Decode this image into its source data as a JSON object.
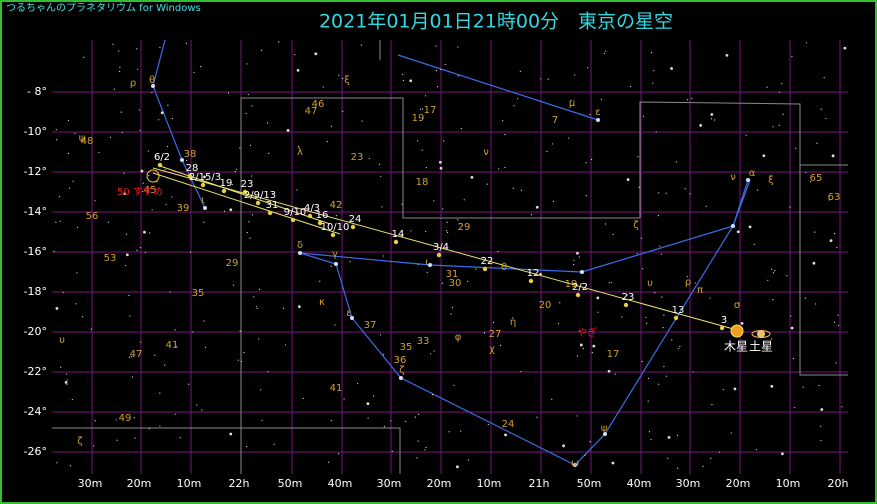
{
  "app_name": "つるちゃんのプラネタリウム for Windows",
  "title": "2021年01月01日21時00分　東京の星空",
  "dec_labels": [
    "- 8°",
    "-10°",
    "-12°",
    "-14°",
    "-16°",
    "-18°",
    "-20°",
    "-22°",
    "-24°",
    "-26°"
  ],
  "ra_labels": [
    "30m",
    "20m",
    "10m",
    "22h",
    "50m",
    "40m",
    "30m",
    "20m",
    "10m",
    "21h",
    "50m",
    "40m",
    "30m",
    "20m",
    "10m",
    "20h"
  ],
  "star_labels": [
    "ρ",
    "θ",
    "ξ",
    "46",
    "47",
    "19",
    "17",
    "μ",
    "ε",
    "7",
    "ψ",
    "38",
    "λ",
    "ν",
    "23",
    "18",
    "39",
    "56",
    "ι",
    "42",
    "29",
    "ζ",
    "53",
    "δ",
    "γ",
    "ι",
    "θ",
    "29",
    "31",
    "30",
    "35",
    "κ",
    "ε",
    "37",
    "20",
    "η",
    "19",
    "ρ",
    "π",
    "σ",
    "υ",
    "φ",
    "27",
    "χ",
    "33",
    "35",
    "36",
    "ζ",
    "17",
    "41",
    "47",
    "υ",
    "41",
    "49",
    "24",
    "ψ",
    "ω",
    "ζ",
    "65",
    "63",
    "ν",
    "α",
    "ξ",
    "48",
    "45"
  ],
  "dates": [
    "6/2",
    "28",
    "2/15/3",
    "19",
    "23",
    "2/9/13",
    "31",
    "9/10",
    "4/3",
    "16",
    "10/10",
    "24",
    "14",
    "3/4",
    "22",
    "12",
    "2/2",
    "23",
    "13",
    "3"
  ],
  "red_labels": [
    "50 すずめ",
    "やぎ"
  ],
  "planets": [
    "木星",
    "土星"
  ]
}
